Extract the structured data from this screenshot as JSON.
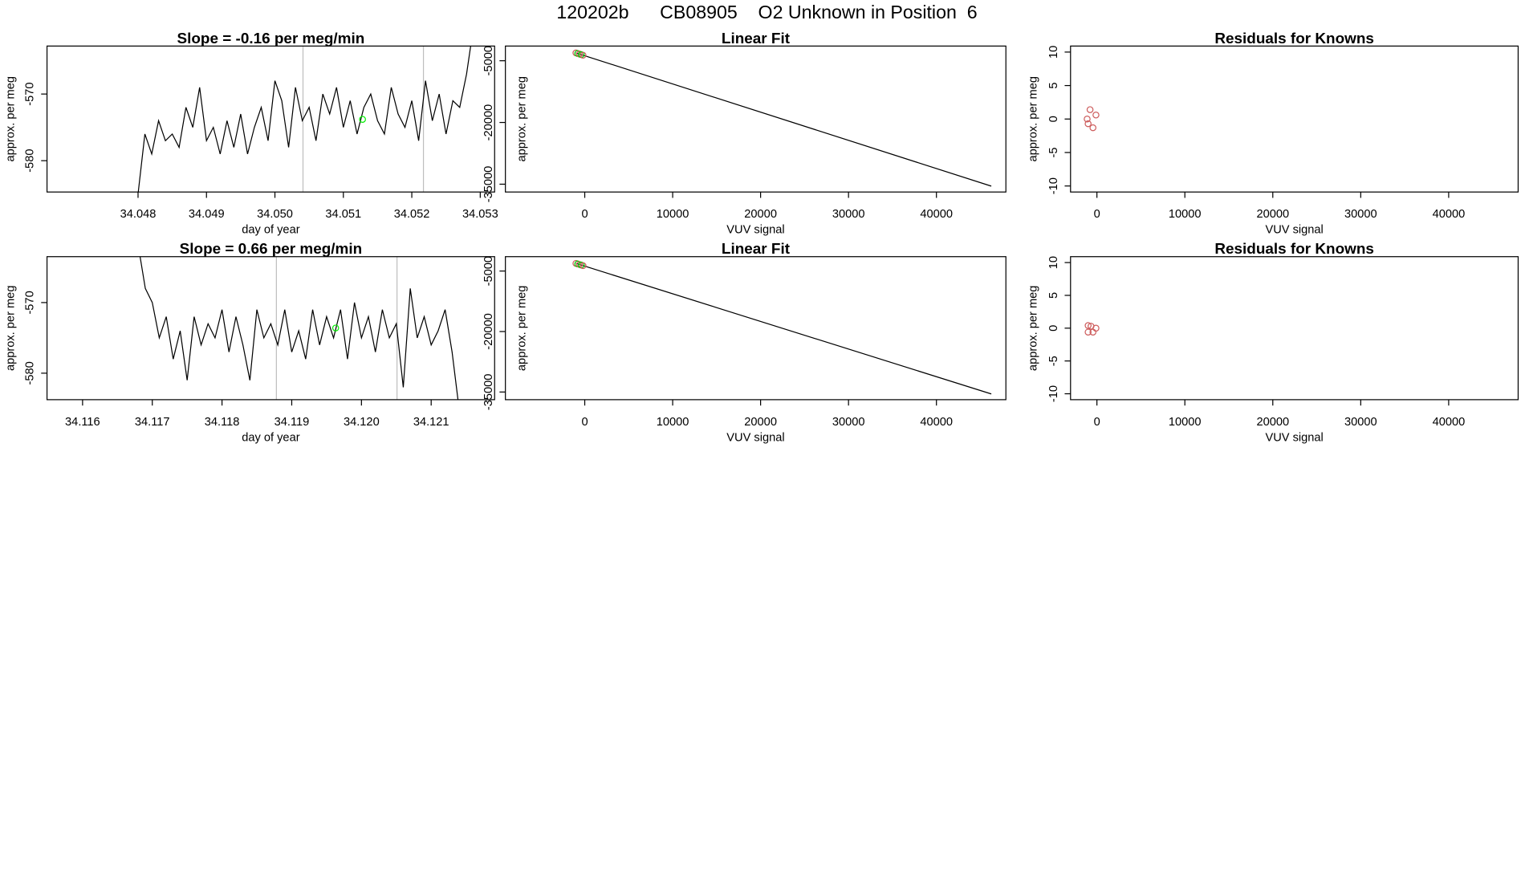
{
  "title": "120202b      CB08905    O2 Unknown in Position  6",
  "chart_data": [
    {
      "type": "line",
      "title": "Slope =  -0.16  per meg/min",
      "xlabel": "day of year",
      "ylabel": "approx. per meg",
      "x": [
        34.048,
        34.0481,
        34.0482,
        34.0483,
        34.0484,
        34.0485,
        34.0486,
        34.0487,
        34.0488,
        34.0489,
        34.049,
        34.0491,
        34.0492,
        34.0493,
        34.0494,
        34.0495,
        34.0496,
        34.0497,
        34.0498,
        34.0499,
        34.05,
        34.0501,
        34.0502,
        34.0503,
        34.0504,
        34.0505,
        34.0506,
        34.0507,
        34.0508,
        34.0509,
        34.051,
        34.0511,
        34.0512,
        34.0513,
        34.0514,
        34.0515,
        34.0516,
        34.0517,
        34.0518,
        34.0519,
        34.052,
        34.0521,
        34.0522,
        34.0523,
        34.0524,
        34.0525,
        34.0526,
        34.0527,
        34.0528,
        34.0529
      ],
      "values": [
        -585,
        -576,
        -579,
        -574,
        -577,
        -576,
        -578,
        -572,
        -575,
        -569,
        -577,
        -575,
        -579,
        -574,
        -578,
        -573,
        -579,
        -575,
        -572,
        -577,
        -568,
        -571,
        -578,
        -569,
        -574,
        -572,
        -577,
        -570,
        -573,
        -569,
        -575,
        -571,
        -576,
        -572,
        -570,
        -574,
        -576,
        -569,
        -573,
        -575,
        -571,
        -577,
        -568,
        -574,
        -570,
        -576,
        -571,
        -572,
        -567,
        -560
      ],
      "color": "#000000",
      "vlines": [
        34.05041,
        34.05217
      ],
      "vline_color": "#bebebe",
      "marker": {
        "x": 34.05128,
        "y": -573.8,
        "color": "#00ee00"
      },
      "xlim": [
        34.04667,
        34.05321
      ],
      "ylim": [
        -584.7,
        -562.8
      ],
      "xticks": [
        34.048,
        34.049,
        {
          "value": 34.05,
          "label": "34.050"
        },
        34.051,
        34.052,
        34.053
      ],
      "yticks": [
        -580,
        -570
      ]
    },
    {
      "type": "scatter",
      "title": "Linear Fit",
      "xlabel": "VUV signal",
      "ylabel": "approx. per meg",
      "x": [
        -1000,
        -800,
        -600,
        -400,
        -200
      ],
      "values": [
        -3095,
        -3232,
        -3369,
        -3506,
        -3643
      ],
      "point_colors": [
        "#cd5c5c",
        "#00cd00",
        "#cd5c5c",
        "#00cd00",
        "#cd5c5c"
      ],
      "fit_line": {
        "x": [
          -1000,
          46240
        ],
        "y": [
          -3095,
          -35476
        ],
        "color": "#000000"
      },
      "xlim": [
        -9025,
        47900
      ],
      "ylim": [
        -36900,
        -1430
      ],
      "xticks": [
        0,
        10000,
        20000,
        30000,
        40000
      ],
      "yticks": [
        -35000,
        -20000,
        -5000
      ]
    },
    {
      "type": "scatter",
      "title": "Residuals for Knowns",
      "xlabel": "VUV signal",
      "ylabel": "approx. per meg",
      "x": [
        -780,
        -110,
        -1110,
        -1000,
        -450
      ],
      "values": [
        1.4,
        0.6,
        0,
        -0.7,
        -1.3
      ],
      "point_colors": [
        "#cd5c5c",
        "#cd5c5c",
        "#cd5c5c",
        "#cd5c5c",
        "#cd5c5c"
      ],
      "xlim": [
        -3000,
        47900
      ],
      "ylim": [
        -10.9,
        10.9
      ],
      "xticks": [
        0,
        10000,
        20000,
        30000,
        40000
      ],
      "yticks": [
        -10,
        -5,
        0,
        5,
        10
      ]
    },
    {
      "type": "line",
      "title": "Slope =  0.66  per meg/min",
      "xlabel": "day of year",
      "ylabel": "approx. per meg",
      "x": [
        34.1168,
        34.1169,
        34.117,
        34.1171,
        34.1172,
        34.1173,
        34.1174,
        34.1175,
        34.1176,
        34.1177,
        34.1178,
        34.1179,
        34.118,
        34.1181,
        34.1182,
        34.1183,
        34.1184,
        34.1185,
        34.1186,
        34.1187,
        34.1188,
        34.1189,
        34.119,
        34.1191,
        34.1192,
        34.1193,
        34.1194,
        34.1195,
        34.1196,
        34.1197,
        34.1198,
        34.1199,
        34.12,
        34.1201,
        34.1202,
        34.1203,
        34.1204,
        34.1205,
        34.1206,
        34.1207,
        34.1208,
        34.1209,
        34.121,
        34.1211,
        34.1212,
        34.1213,
        34.1214
      ],
      "values": [
        -562,
        -568,
        -570,
        -575,
        -572,
        -578,
        -574,
        -581,
        -572,
        -576,
        -573,
        -575,
        -571,
        -577,
        -572,
        -576,
        -581,
        -571,
        -575,
        -573,
        -576,
        -571,
        -577,
        -574,
        -578,
        -571,
        -576,
        -572,
        -575,
        -571,
        -578,
        -570,
        -575,
        -572,
        -577,
        -571,
        -575,
        -573,
        -582,
        -568,
        -575,
        -572,
        -576,
        -574,
        -571,
        -577,
        -585
      ],
      "color": "#000000",
      "vlines": [
        34.11878,
        34.12051
      ],
      "vline_color": "#bebebe",
      "marker": {
        "x": 34.11963,
        "y": -573.6,
        "color": "#00ee00"
      },
      "xlim": [
        34.11549,
        34.12191
      ],
      "ylim": [
        -583.75,
        -563.5
      ],
      "xticks": [
        34.116,
        34.117,
        34.118,
        34.119,
        {
          "value": 34.12,
          "label": "34.120"
        },
        34.121
      ],
      "yticks": [
        -580,
        -570
      ]
    },
    {
      "type": "scatter",
      "title": "Linear Fit",
      "xlabel": "VUV signal",
      "ylabel": "approx. per meg",
      "x": [
        -1000,
        -800,
        -600,
        -400,
        -200
      ],
      "values": [
        -3095,
        -3232,
        -3369,
        -3506,
        -3643
      ],
      "point_colors": [
        "#cd5c5c",
        "#00cd00",
        "#cd5c5c",
        "#00cd00",
        "#cd5c5c"
      ],
      "fit_line": {
        "x": [
          -1000,
          46240
        ],
        "y": [
          -3095,
          -35476
        ],
        "color": "#000000"
      },
      "xlim": [
        -9025,
        47900
      ],
      "ylim": [
        -36900,
        -1430
      ],
      "xticks": [
        0,
        10000,
        20000,
        30000,
        40000
      ],
      "yticks": [
        -35000,
        -20000,
        -5000
      ]
    },
    {
      "type": "scatter",
      "title": "Residuals for Knowns",
      "xlabel": "VUV signal",
      "ylabel": "approx. per meg",
      "x": [
        -1000,
        -670,
        -110,
        -1000,
        -450
      ],
      "values": [
        0.4,
        0.3,
        0,
        -0.6,
        -0.6
      ],
      "point_colors": [
        "#cd5c5c",
        "#cd5c5c",
        "#cd5c5c",
        "#cd5c5c",
        "#cd5c5c"
      ],
      "xlim": [
        -3000,
        47900
      ],
      "ylim": [
        -10.9,
        10.9
      ],
      "xticks": [
        0,
        10000,
        20000,
        30000,
        40000
      ],
      "yticks": [
        -10,
        -5,
        0,
        5,
        10
      ]
    }
  ]
}
